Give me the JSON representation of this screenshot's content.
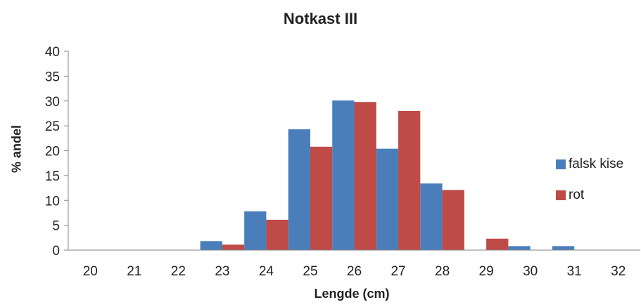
{
  "chart_data": {
    "type": "bar",
    "title": "Notkast III",
    "xlabel": "Lengde (cm)",
    "ylabel": "% andel",
    "ylim": [
      0,
      40
    ],
    "yticks": [
      "0",
      "5",
      "10",
      "15",
      "20",
      "25",
      "30",
      "35",
      "40"
    ],
    "categories": [
      "20",
      "21",
      "22",
      "23",
      "24",
      "25",
      "26",
      "27",
      "28",
      "29",
      "30",
      "31",
      "32"
    ],
    "series": [
      {
        "name": "falsk kise",
        "color": "#4a7ebb",
        "values": [
          0,
          0,
          0,
          1.8,
          7.8,
          24.3,
          30.1,
          20.4,
          13.4,
          0,
          0.8,
          0.8,
          0
        ]
      },
      {
        "name": "rot",
        "color": "#be4b48",
        "values": [
          0,
          0,
          0,
          1.1,
          6.1,
          20.8,
          29.8,
          28,
          12.1,
          2.3,
          0,
          0,
          0
        ]
      }
    ],
    "grid": false,
    "legend_position": "right"
  }
}
